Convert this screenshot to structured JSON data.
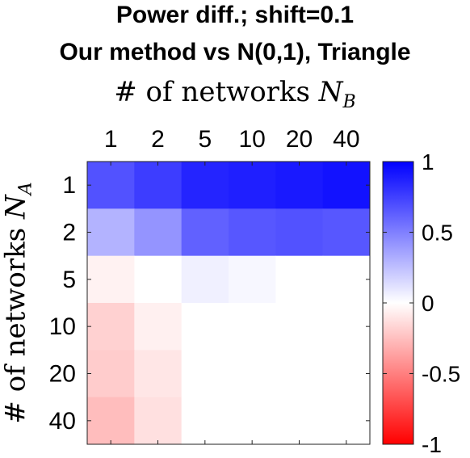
{
  "chart_data": {
    "type": "heatmap",
    "title": "Power diff.; shift=0.1",
    "subtitle": "Our method vs N(0,1), Triangle",
    "xlabel": "# of networks N_B",
    "ylabel": "# of networks N_A",
    "x_categories": [
      "1",
      "2",
      "5",
      "10",
      "20",
      "40"
    ],
    "y_categories": [
      "1",
      "2",
      "5",
      "10",
      "20",
      "40"
    ],
    "x_axis_position": "top",
    "values": [
      [
        0.68,
        0.76,
        0.86,
        0.88,
        0.9,
        0.93
      ],
      [
        0.3,
        0.42,
        0.62,
        0.66,
        0.68,
        0.66
      ],
      [
        -0.05,
        0.0,
        0.06,
        0.03,
        0.0,
        0.0
      ],
      [
        -0.18,
        -0.06,
        0.0,
        0.0,
        0.0,
        0.0
      ],
      [
        -0.2,
        -0.1,
        0.0,
        0.0,
        0.0,
        0.0
      ],
      [
        -0.26,
        -0.12,
        0.0,
        0.0,
        0.0,
        0.0
      ]
    ],
    "colorbar": {
      "range": [
        -1,
        1
      ],
      "ticks": [
        1,
        0.5,
        0,
        -0.5,
        -1
      ],
      "tick_labels": [
        "1",
        "0.5",
        "0",
        "-0.5",
        "-1"
      ],
      "colors": {
        "low": "#ff0000",
        "mid": "#ffffff",
        "high": "#0000ff"
      }
    }
  }
}
